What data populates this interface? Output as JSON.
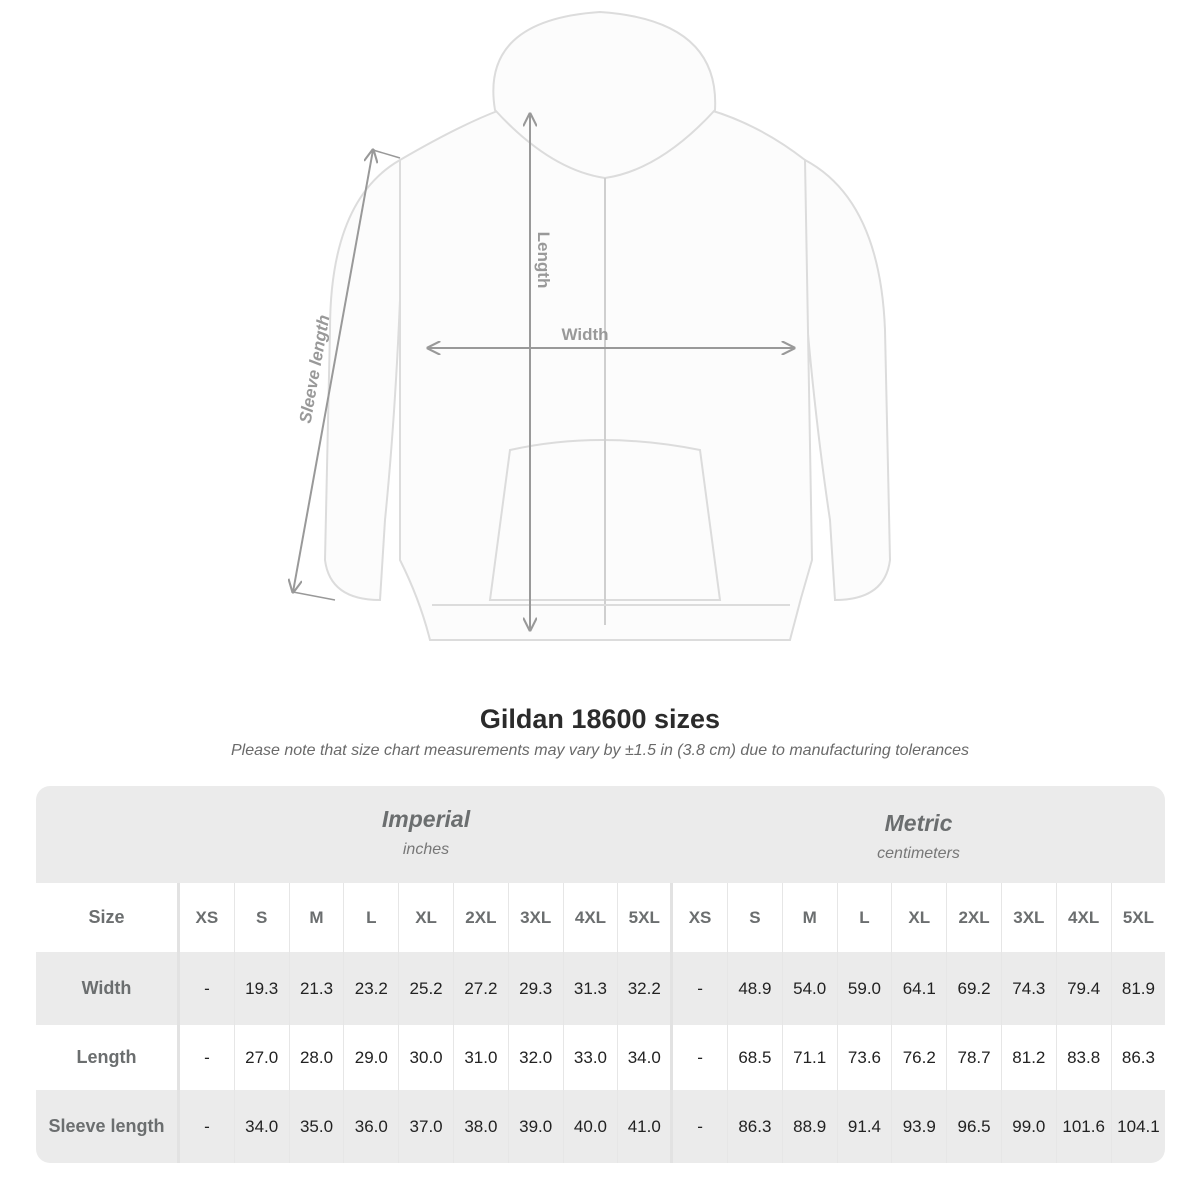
{
  "diagram": {
    "labels": {
      "length": "Length",
      "width": "Width",
      "sleeve": "Sleeve length"
    }
  },
  "title": "Gildan 18600 sizes",
  "note": "Please note that size chart measurements may vary by ±1.5 in (3.8 cm) due to manufacturing tolerances",
  "table": {
    "imperial": {
      "name": "Imperial",
      "unit": "inches"
    },
    "metric": {
      "name": "Metric",
      "unit": "centimeters"
    },
    "size_label": "Size",
    "sizes": [
      "XS",
      "S",
      "M",
      "L",
      "XL",
      "2XL",
      "3XL",
      "4XL",
      "5XL"
    ],
    "rows": [
      {
        "label": "Width",
        "imperial": [
          "-",
          "19.3",
          "21.3",
          "23.2",
          "25.2",
          "27.2",
          "29.3",
          "31.3",
          "32.2"
        ],
        "metric": [
          "-",
          "48.9",
          "54.0",
          "59.0",
          "64.1",
          "69.2",
          "74.3",
          "79.4",
          "81.9"
        ]
      },
      {
        "label": "Length",
        "imperial": [
          "-",
          "27.0",
          "28.0",
          "29.0",
          "30.0",
          "31.0",
          "32.0",
          "33.0",
          "34.0"
        ],
        "metric": [
          "-",
          "68.5",
          "71.1",
          "73.6",
          "76.2",
          "78.7",
          "81.2",
          "83.8",
          "86.3"
        ]
      },
      {
        "label": "Sleeve length",
        "imperial": [
          "-",
          "34.0",
          "35.0",
          "36.0",
          "37.0",
          "38.0",
          "39.0",
          "40.0",
          "41.0"
        ],
        "metric": [
          "-",
          "86.3",
          "88.9",
          "91.4",
          "93.9",
          "96.5",
          "99.0",
          "101.6",
          "104.1"
        ]
      }
    ]
  }
}
